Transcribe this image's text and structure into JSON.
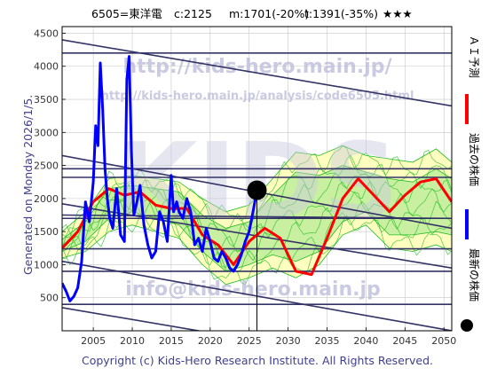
{
  "header": {
    "title": "6505=東洋電",
    "current": "c:2125",
    "median": "m:1701(-20%)",
    "target": "t:1391(-35%)",
    "stars": "★★★"
  },
  "side_left": "Generated on Monday 2026/1/5.",
  "watermarks": {
    "site": "http://kids-hero.main.jp/",
    "page": "http://kids-hero.main.jp/analysis/code6505.html",
    "big": "KIDS",
    "mail": "info@kids-hero.main.jp"
  },
  "footer": "Copyright (c) Kids-Hero Research Institute. All Rights Reserved.",
  "legend": [
    {
      "label": "ＡＩ予測",
      "color": "#ff0000",
      "kind": "line"
    },
    {
      "label": "過去の株価",
      "color": "#0000ff",
      "kind": "line"
    },
    {
      "label": "最新の株価",
      "color": "#000000",
      "kind": "dot"
    }
  ],
  "colors": {
    "forecast": "#ff0000",
    "price": "#0000ff",
    "band_outer": "#ffffc0",
    "band_inner": "#c8f0a0",
    "green": "#22bb22",
    "trend": "#333366",
    "grid": "#c8c8c8",
    "axis_text": "#333333",
    "side_text": "#404090"
  },
  "chart_data": {
    "type": "line",
    "xlim": [
      2001,
      2051
    ],
    "ylim": [
      0,
      4600
    ],
    "xticks": [
      2005,
      2010,
      2015,
      2020,
      2025,
      2030,
      2035,
      2040,
      2045,
      2050
    ],
    "yticks": [
      500,
      1000,
      1500,
      2000,
      2500,
      3000,
      3500,
      4000,
      4500
    ],
    "grid": true,
    "latest": {
      "x": 2026.0,
      "y": 2125
    },
    "hlines": [
      4200,
      2450,
      2320,
      1700,
      1240,
      900,
      400
    ],
    "trendlines": [
      {
        "x": [
          2001,
          2051
        ],
        "y": [
          4400,
          3400
        ]
      },
      {
        "x": [
          2001,
          2051
        ],
        "y": [
          2650,
          1550
        ]
      },
      {
        "x": [
          2001,
          2051
        ],
        "y": [
          1920,
          950
        ]
      },
      {
        "x": [
          2001,
          2051
        ],
        "y": [
          1750,
          1700
        ]
      },
      {
        "x": [
          2001,
          2051
        ],
        "y": [
          1050,
          0
        ]
      },
      {
        "x": [
          2001,
          2051
        ],
        "y": [
          350,
          -650
        ]
      }
    ],
    "price_series": {
      "x": [
        2001,
        2001.5,
        2002,
        2002.5,
        2003,
        2003.5,
        2004,
        2004.5,
        2005,
        2005.3,
        2005.6,
        2005.9,
        2006.2,
        2006.5,
        2006.8,
        2007.1,
        2007.5,
        2008,
        2008.5,
        2009,
        2009.3,
        2009.6,
        2009.9,
        2010.2,
        2010.6,
        2011,
        2011.5,
        2012,
        2012.5,
        2013,
        2013.5,
        2014,
        2014.5,
        2015,
        2015.3,
        2015.7,
        2016,
        2016.5,
        2017,
        2017.5,
        2018,
        2018.5,
        2019,
        2019.5,
        2020,
        2020.5,
        2021,
        2021.5,
        2022,
        2022.5,
        2023,
        2023.5,
        2024,
        2024.5,
        2025,
        2025.5,
        2026
      ],
      "y": [
        720,
        600,
        450,
        520,
        650,
        1050,
        1950,
        1650,
        2250,
        3100,
        2800,
        4050,
        3350,
        2450,
        2000,
        1700,
        1550,
        2150,
        1450,
        1350,
        3800,
        4150,
        2700,
        1750,
        1950,
        2200,
        1600,
        1300,
        1100,
        1200,
        1800,
        1650,
        1350,
        2350,
        1800,
        1950,
        1800,
        1700,
        2000,
        1800,
        1300,
        1400,
        1200,
        1550,
        1350,
        1100,
        1050,
        1200,
        1100,
        950,
        900,
        1000,
        1150,
        1350,
        1500,
        1800,
        2125
      ]
    },
    "forecast_series": {
      "x": [
        2001,
        2003,
        2005,
        2007,
        2009,
        2011,
        2013,
        2015,
        2017,
        2019,
        2021,
        2023,
        2025,
        2027,
        2029,
        2031,
        2033,
        2035,
        2037,
        2039,
        2041,
        2043,
        2045,
        2047,
        2049,
        2051
      ],
      "y": [
        1250,
        1500,
        1950,
        2150,
        2050,
        2100,
        1900,
        1850,
        1850,
        1450,
        1300,
        1000,
        1350,
        1550,
        1400,
        900,
        850,
        1400,
        2000,
        2300,
        2050,
        1800,
        2050,
        2250,
        2300,
        1950
      ]
    },
    "band_outer": {
      "x": [
        2001,
        2004,
        2007,
        2010,
        2013,
        2016,
        2019,
        2022,
        2025,
        2028,
        2031,
        2034,
        2037,
        2040,
        2043,
        2046,
        2049,
        2051
      ],
      "upper": [
        1500,
        1800,
        2300,
        2350,
        2300,
        2250,
        2000,
        1800,
        1900,
        2300,
        2700,
        2650,
        2800,
        2650,
        2600,
        2550,
        2750,
        2550
      ],
      "lower": [
        1100,
        1200,
        1500,
        1600,
        1500,
        1400,
        1000,
        700,
        800,
        950,
        800,
        1000,
        1450,
        1600,
        1250,
        1200,
        1300,
        1200
      ]
    },
    "band_inner": {
      "x": [
        2001,
        2004,
        2007,
        2010,
        2013,
        2016,
        2019,
        2022,
        2025,
        2028,
        2031,
        2034,
        2037,
        2040,
        2043,
        2046,
        2049,
        2051
      ],
      "upper": [
        1380,
        1650,
        2150,
        2200,
        2150,
        2100,
        1750,
        1550,
        1650,
        2050,
        2400,
        2350,
        2500,
        2400,
        2300,
        2250,
        2450,
        2300
      ],
      "lower": [
        1200,
        1350,
        1700,
        1800,
        1700,
        1600,
        1200,
        900,
        1000,
        1150,
        1050,
        1200,
        1650,
        1800,
        1450,
        1450,
        1500,
        1450
      ]
    }
  }
}
